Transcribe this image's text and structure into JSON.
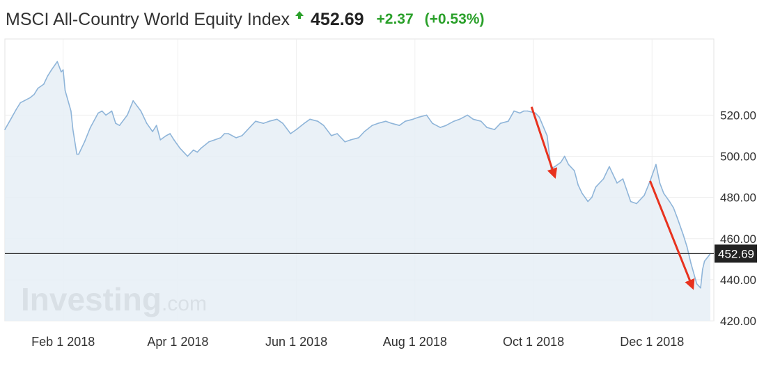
{
  "header": {
    "title": "MSCI All-Country World Equity Index",
    "price": "452.69",
    "change": "+2.37",
    "change_pct": "(+0.53%)",
    "direction_icon": "up-arrow-icon",
    "up_color": "#2aa02a"
  },
  "watermark": {
    "brand": "Investing",
    "suffix": ".com"
  },
  "current_price_label": "452.69",
  "colors": {
    "line": "#8fb5d9",
    "fill": "#e6eef6",
    "arrow": "#e8321e",
    "current_line": "#222222",
    "label_bg": "#222222"
  },
  "chart_data": {
    "type": "area",
    "title": "MSCI All-Country World Equity Index",
    "xlabel": "",
    "ylabel": "",
    "ylim": [
      420,
      557
    ],
    "y_ticks": [
      420,
      440,
      460,
      480,
      500,
      520
    ],
    "y_tick_labels": [
      "420.00",
      "440.00",
      "460.00",
      "480.00",
      "500.00",
      "520.00"
    ],
    "x_ticks": [
      "2018-02-01",
      "2018-04-01",
      "2018-06-01",
      "2018-08-01",
      "2018-10-01",
      "2018-12-01"
    ],
    "x_tick_labels": [
      "Feb 1 2018",
      "Apr 1 2018",
      "Jun 1 2018",
      "Aug 1 2018",
      "Oct 1 2018",
      "Dec 1 2018"
    ],
    "x_range": [
      "2018-01-02",
      "2018-12-31"
    ],
    "current_value": 452.69,
    "series": [
      {
        "values": [
          [
            "2018-01-02",
            513.0
          ],
          [
            "2018-01-05",
            518.0
          ],
          [
            "2018-01-08",
            523.0
          ],
          [
            "2018-01-10",
            526.0
          ],
          [
            "2018-01-12",
            527.0
          ],
          [
            "2018-01-15",
            528.5
          ],
          [
            "2018-01-17",
            530.0
          ],
          [
            "2018-01-19",
            533.0
          ],
          [
            "2018-01-22",
            535.0
          ],
          [
            "2018-01-24",
            539.0
          ],
          [
            "2018-01-26",
            542.0
          ],
          [
            "2018-01-29",
            546.0
          ],
          [
            "2018-01-31",
            541.0
          ],
          [
            "2018-02-01",
            542.0
          ],
          [
            "2018-02-02",
            532.0
          ],
          [
            "2018-02-05",
            522.0
          ],
          [
            "2018-02-06",
            513.0
          ],
          [
            "2018-02-08",
            501.0
          ],
          [
            "2018-02-09",
            501.0
          ],
          [
            "2018-02-12",
            507.0
          ],
          [
            "2018-02-15",
            514.0
          ],
          [
            "2018-02-19",
            521.0
          ],
          [
            "2018-02-21",
            522.0
          ],
          [
            "2018-02-23",
            520.0
          ],
          [
            "2018-02-26",
            522.0
          ],
          [
            "2018-02-28",
            516.0
          ],
          [
            "2018-03-02",
            515.0
          ],
          [
            "2018-03-06",
            520.0
          ],
          [
            "2018-03-09",
            527.0
          ],
          [
            "2018-03-13",
            522.0
          ],
          [
            "2018-03-16",
            516.0
          ],
          [
            "2018-03-19",
            512.0
          ],
          [
            "2018-03-21",
            515.0
          ],
          [
            "2018-03-23",
            508.0
          ],
          [
            "2018-03-26",
            510.0
          ],
          [
            "2018-03-28",
            511.0
          ],
          [
            "2018-03-30",
            508.0
          ],
          [
            "2018-04-02",
            504.0
          ],
          [
            "2018-04-04",
            502.0
          ],
          [
            "2018-04-06",
            500.0
          ],
          [
            "2018-04-09",
            503.0
          ],
          [
            "2018-04-11",
            502.0
          ],
          [
            "2018-04-13",
            504.0
          ],
          [
            "2018-04-17",
            507.0
          ],
          [
            "2018-04-20",
            508.0
          ],
          [
            "2018-04-23",
            509.0
          ],
          [
            "2018-04-25",
            511.0
          ],
          [
            "2018-04-27",
            511.0
          ],
          [
            "2018-05-01",
            509.0
          ],
          [
            "2018-05-04",
            510.0
          ],
          [
            "2018-05-08",
            514.0
          ],
          [
            "2018-05-11",
            517.0
          ],
          [
            "2018-05-15",
            516.0
          ],
          [
            "2018-05-18",
            517.0
          ],
          [
            "2018-05-22",
            518.0
          ],
          [
            "2018-05-25",
            516.0
          ],
          [
            "2018-05-29",
            511.0
          ],
          [
            "2018-06-01",
            513.0
          ],
          [
            "2018-06-05",
            516.0
          ],
          [
            "2018-06-08",
            518.0
          ],
          [
            "2018-06-12",
            517.0
          ],
          [
            "2018-06-15",
            515.0
          ],
          [
            "2018-06-19",
            510.0
          ],
          [
            "2018-06-22",
            511.0
          ],
          [
            "2018-06-26",
            507.0
          ],
          [
            "2018-06-29",
            508.0
          ],
          [
            "2018-07-03",
            509.0
          ],
          [
            "2018-07-06",
            512.0
          ],
          [
            "2018-07-10",
            515.0
          ],
          [
            "2018-07-13",
            516.0
          ],
          [
            "2018-07-17",
            517.0
          ],
          [
            "2018-07-20",
            516.0
          ],
          [
            "2018-07-24",
            515.0
          ],
          [
            "2018-07-27",
            517.0
          ],
          [
            "2018-07-31",
            518.0
          ],
          [
            "2018-08-03",
            519.0
          ],
          [
            "2018-08-07",
            520.0
          ],
          [
            "2018-08-10",
            516.0
          ],
          [
            "2018-08-14",
            514.0
          ],
          [
            "2018-08-17",
            515.0
          ],
          [
            "2018-08-21",
            517.0
          ],
          [
            "2018-08-24",
            518.0
          ],
          [
            "2018-08-28",
            520.0
          ],
          [
            "2018-08-31",
            518.0
          ],
          [
            "2018-09-04",
            517.0
          ],
          [
            "2018-09-07",
            514.0
          ],
          [
            "2018-09-11",
            513.0
          ],
          [
            "2018-09-14",
            516.0
          ],
          [
            "2018-09-18",
            517.0
          ],
          [
            "2018-09-21",
            522.0
          ],
          [
            "2018-09-24",
            521.0
          ],
          [
            "2018-09-26",
            522.0
          ],
          [
            "2018-09-28",
            522.0
          ],
          [
            "2018-10-02",
            521.0
          ],
          [
            "2018-10-04",
            519.0
          ],
          [
            "2018-10-08",
            510.0
          ],
          [
            "2018-10-10",
            494.0
          ],
          [
            "2018-10-12",
            495.0
          ],
          [
            "2018-10-15",
            497.0
          ],
          [
            "2018-10-17",
            500.0
          ],
          [
            "2018-10-19",
            496.0
          ],
          [
            "2018-10-22",
            493.0
          ],
          [
            "2018-10-24",
            486.0
          ],
          [
            "2018-10-26",
            482.0
          ],
          [
            "2018-10-29",
            478.0
          ],
          [
            "2018-10-31",
            480.0
          ],
          [
            "2018-11-02",
            485.0
          ],
          [
            "2018-11-06",
            489.0
          ],
          [
            "2018-11-09",
            495.0
          ],
          [
            "2018-11-13",
            487.0
          ],
          [
            "2018-11-16",
            489.0
          ],
          [
            "2018-11-20",
            478.0
          ],
          [
            "2018-11-23",
            477.0
          ],
          [
            "2018-11-27",
            481.0
          ],
          [
            "2018-11-30",
            488.0
          ],
          [
            "2018-12-03",
            496.0
          ],
          [
            "2018-12-05",
            487.0
          ],
          [
            "2018-12-07",
            482.0
          ],
          [
            "2018-12-10",
            478.0
          ],
          [
            "2018-12-12",
            475.0
          ],
          [
            "2018-12-14",
            470.0
          ],
          [
            "2018-12-17",
            462.0
          ],
          [
            "2018-12-19",
            456.0
          ],
          [
            "2018-12-21",
            448.0
          ],
          [
            "2018-12-24",
            438.0
          ],
          [
            "2018-12-26",
            436.0
          ],
          [
            "2018-12-27",
            445.0
          ],
          [
            "2018-12-28",
            449.0
          ],
          [
            "2018-12-31",
            452.69
          ]
        ]
      }
    ],
    "annotations": [
      {
        "type": "arrow",
        "from": [
          "2018-09-30",
          524
        ],
        "to": [
          "2018-10-12",
          490
        ]
      },
      {
        "type": "arrow",
        "from": [
          "2018-11-30",
          488
        ],
        "to": [
          "2018-12-22",
          436
        ]
      }
    ],
    "grid": true,
    "legend": "none"
  }
}
